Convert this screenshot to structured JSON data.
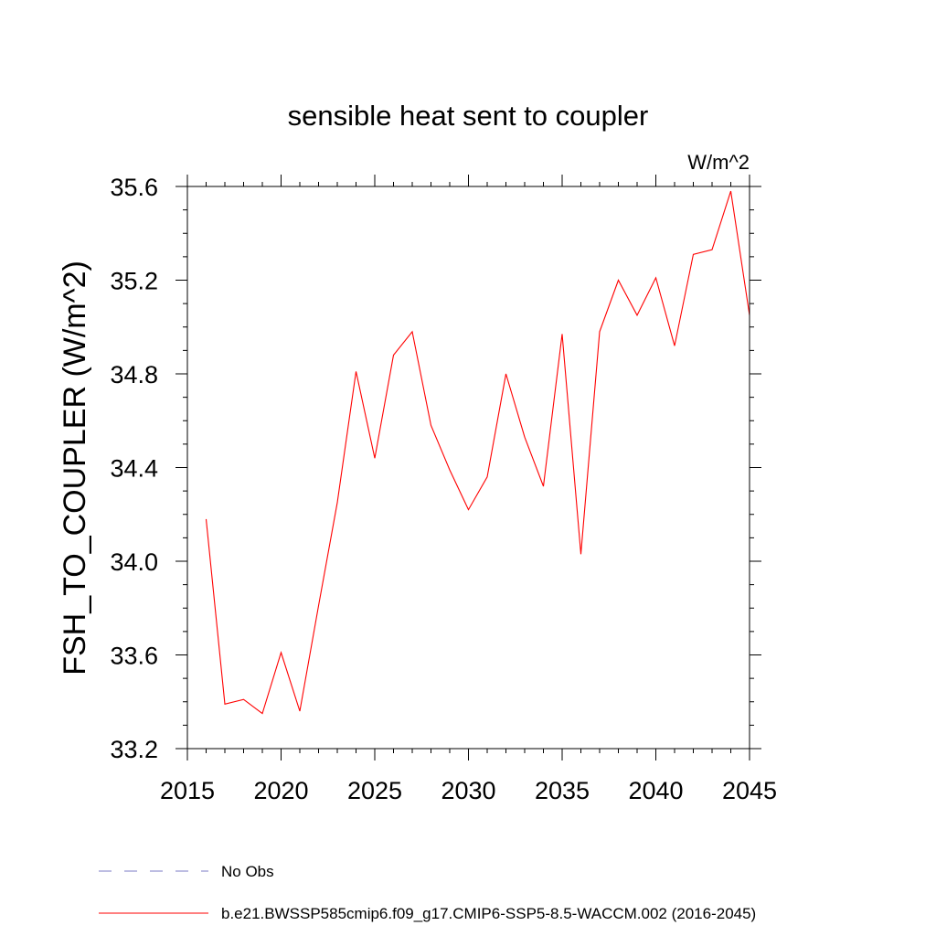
{
  "chart_data": {
    "type": "line",
    "title": "sensible heat sent to coupler",
    "units": "W/m^2",
    "ylabel": "FSH_TO_COUPLER  (W/m^2)",
    "xlabel": "",
    "xlim": [
      2015,
      2045
    ],
    "ylim": [
      33.2,
      35.6
    ],
    "xticks": [
      2015,
      2020,
      2025,
      2030,
      2035,
      2040,
      2045
    ],
    "yticks": [
      33.2,
      33.6,
      34.0,
      34.4,
      34.8,
      35.2,
      35.6
    ],
    "xtick_labels": [
      "2015",
      "2020",
      "2025",
      "2030",
      "2035",
      "2040",
      "2045"
    ],
    "ytick_labels": [
      "33.2",
      "33.6",
      "34.0",
      "34.4",
      "34.8",
      "35.2",
      "35.6"
    ],
    "grid": false,
    "legend_placement": "bottom",
    "series": [
      {
        "name": "b.e21.BWSSP585cmip6.f09_g17.CMIP6-SSP5-8.5-WACCM.002 (2016-2045)",
        "color": "#ff0000",
        "style": "solid",
        "x": [
          2016,
          2017,
          2018,
          2019,
          2020,
          2021,
          2022,
          2023,
          2024,
          2025,
          2026,
          2027,
          2028,
          2029,
          2030,
          2031,
          2032,
          2033,
          2034,
          2035,
          2036,
          2037,
          2038,
          2039,
          2040,
          2041,
          2042,
          2043,
          2044,
          2045
        ],
        "values": [
          34.18,
          33.39,
          33.41,
          33.35,
          33.61,
          33.36,
          33.81,
          34.25,
          34.81,
          34.44,
          34.88,
          34.98,
          34.58,
          34.39,
          34.22,
          34.36,
          34.8,
          34.53,
          34.32,
          34.97,
          34.03,
          34.98,
          35.2,
          35.05,
          35.21,
          34.92,
          35.31,
          35.33,
          35.58,
          35.05
        ]
      },
      {
        "name": "No Obs",
        "color": "#7b7bc4",
        "style": "dashed",
        "x": [],
        "values": []
      }
    ]
  }
}
